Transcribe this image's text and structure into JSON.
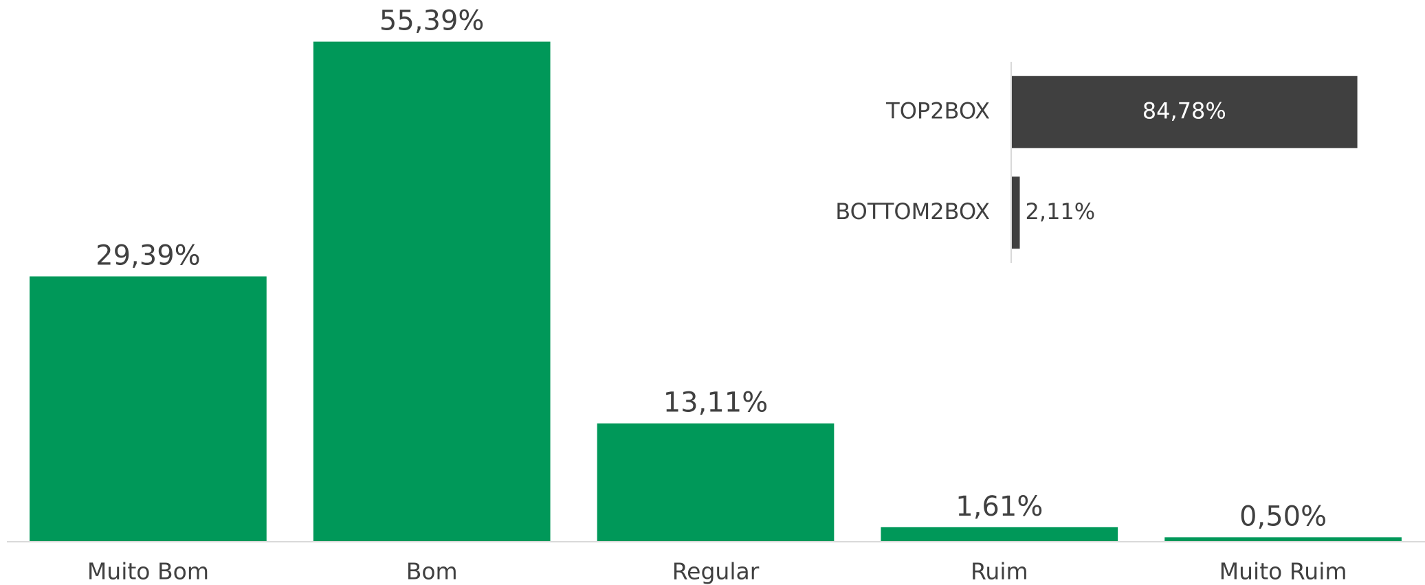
{
  "chart_data": [
    {
      "type": "bar",
      "orientation": "vertical",
      "categories": [
        "Muito Bom",
        "Bom",
        "Regular",
        "Ruim",
        "Muito Ruim"
      ],
      "values": [
        29.39,
        55.39,
        13.11,
        1.61,
        0.5
      ],
      "value_labels": [
        "29,39%",
        "55,39%",
        "13,11%",
        "1,61%",
        "0,50%"
      ],
      "color": "#009859",
      "ylim": [
        0,
        60
      ]
    },
    {
      "type": "bar",
      "orientation": "horizontal",
      "categories": [
        "TOP2BOX",
        "BOTTOM2BOX"
      ],
      "values": [
        84.78,
        2.11
      ],
      "value_labels": [
        "84,78%",
        "2,11%"
      ],
      "color": "#404040",
      "xlim": [
        0,
        100
      ]
    }
  ]
}
